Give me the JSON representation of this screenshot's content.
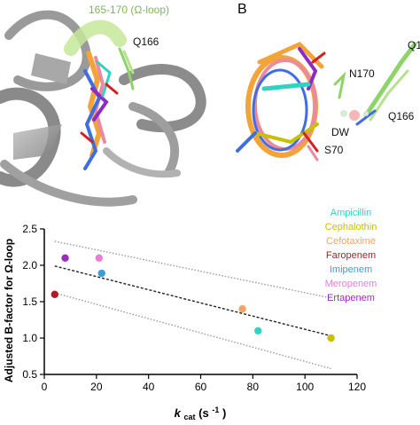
{
  "panel_a": {
    "loop_label": "165-170 (Ω-loop)",
    "residue_label": "Q166"
  },
  "panel_b": {
    "letter": "B",
    "labels": {
      "q_top": "Q1",
      "n170": "N170",
      "q166": "Q166",
      "dw": "DW",
      "s70": "S70"
    }
  },
  "chart_data": {
    "type": "scatter",
    "title": "",
    "xlabel_main": "k",
    "xlabel_sub": "cat",
    "xlabel_unit": " (s",
    "xlabel_sup": "-1",
    "xlabel_close": ")",
    "ylabel": "Adjusted B-factor for Ω-loop",
    "xlim": [
      0,
      120
    ],
    "ylim": [
      0.5,
      2.5
    ],
    "xticks": [
      "0",
      "20",
      "40",
      "60",
      "80",
      "100",
      "120"
    ],
    "yticks": [
      "0.5",
      "1.0",
      "1.5",
      "2.0",
      "2.5"
    ],
    "grid": false,
    "legend_position": "top-right",
    "series": [
      {
        "name": "Ampicillin",
        "color": "#2fd3bf",
        "x": 82,
        "y": 1.1
      },
      {
        "name": "Cephalothin",
        "color": "#c8c000",
        "x": 110,
        "y": 1.0
      },
      {
        "name": "Cefotaxime",
        "color": "#f4a460",
        "x": 76,
        "y": 1.4
      },
      {
        "name": "Faropenem",
        "color": "#b01c24",
        "x": 4,
        "y": 1.6
      },
      {
        "name": "Imipenem",
        "color": "#3a9fd8",
        "x": 22,
        "y": 1.89
      },
      {
        "name": "Meropenem",
        "color": "#e87ed8",
        "x": 21,
        "y": 2.1
      },
      {
        "name": "Ertapenem",
        "color": "#9a2cc0",
        "x": 8,
        "y": 2.1
      }
    ],
    "fit_line": {
      "x": [
        4,
        110
      ],
      "y": [
        1.99,
        1.03
      ]
    },
    "confidence_upper": {
      "x": [
        4,
        110
      ],
      "y": [
        2.33,
        1.55
      ]
    },
    "confidence_lower": {
      "x": [
        4,
        110
      ],
      "y": [
        1.62,
        0.58
      ]
    }
  }
}
